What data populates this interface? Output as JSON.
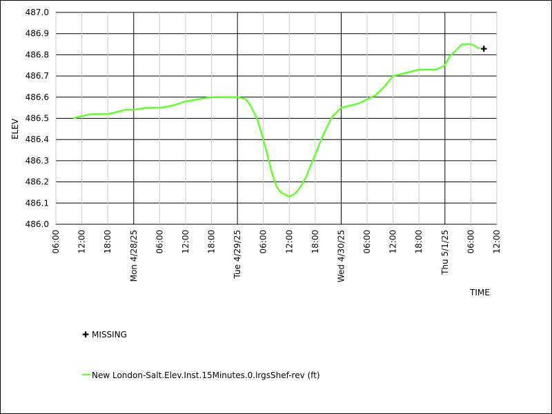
{
  "chart_data": {
    "type": "line",
    "title": "",
    "xlabel": "TIME",
    "ylabel": "ELEV",
    "grid": true,
    "y_ticks": [
      "487.0",
      "486.9",
      "486.8",
      "486.7",
      "486.6",
      "486.5",
      "486.4",
      "486.3",
      "486.2",
      "486.1",
      "486.0"
    ],
    "ylim": [
      486.0,
      487.0
    ],
    "x_range_hours": [
      "2025-04-27 06:00",
      "2025-05-01 12:00"
    ],
    "x_ticks": [
      "06:00",
      "12:00",
      "18:00",
      "Mon 4/28/25",
      "06:00",
      "12:00",
      "18:00",
      "Tue 4/29/25",
      "06:00",
      "12:00",
      "18:00",
      "Wed 4/30/25",
      "06:00",
      "12:00",
      "18:00",
      "Thu 5/1/25",
      "06:00",
      "12:00"
    ],
    "series": [
      {
        "name": "New London-Salt.Elev.Inst.15Minutes.0.lrgsShef-rev (ft)",
        "color": "#66ff33",
        "points": [
          [
            "2025-04-27 10:00",
            486.5
          ],
          [
            "2025-04-27 12:00",
            486.51
          ],
          [
            "2025-04-27 14:00",
            486.52
          ],
          [
            "2025-04-27 16:00",
            486.52
          ],
          [
            "2025-04-27 18:00",
            486.52
          ],
          [
            "2025-04-27 20:00",
            486.53
          ],
          [
            "2025-04-27 22:00",
            486.54
          ],
          [
            "2025-04-28 00:00",
            486.54
          ],
          [
            "2025-04-28 03:00",
            486.55
          ],
          [
            "2025-04-28 06:00",
            486.55
          ],
          [
            "2025-04-28 09:00",
            486.56
          ],
          [
            "2025-04-28 12:00",
            486.58
          ],
          [
            "2025-04-28 15:00",
            486.59
          ],
          [
            "2025-04-28 18:00",
            486.6
          ],
          [
            "2025-04-28 21:00",
            486.6
          ],
          [
            "2025-04-29 00:00",
            486.6
          ],
          [
            "2025-04-29 02:00",
            486.59
          ],
          [
            "2025-04-29 03:00",
            486.56
          ],
          [
            "2025-04-29 04:30",
            486.5
          ],
          [
            "2025-04-29 06:00",
            486.4
          ],
          [
            "2025-04-29 07:00",
            486.32
          ],
          [
            "2025-04-29 08:00",
            486.24
          ],
          [
            "2025-04-29 09:00",
            486.18
          ],
          [
            "2025-04-29 10:00",
            486.15
          ],
          [
            "2025-04-29 11:00",
            486.14
          ],
          [
            "2025-04-29 12:00",
            486.13
          ],
          [
            "2025-04-29 13:00",
            486.14
          ],
          [
            "2025-04-29 14:00",
            486.16
          ],
          [
            "2025-04-29 15:00",
            486.19
          ],
          [
            "2025-04-29 16:00",
            486.23
          ],
          [
            "2025-04-29 17:00",
            486.28
          ],
          [
            "2025-04-29 18:00",
            486.33
          ],
          [
            "2025-04-29 19:00",
            486.38
          ],
          [
            "2025-04-29 20:00",
            486.43
          ],
          [
            "2025-04-29 21:00",
            486.47
          ],
          [
            "2025-04-29 22:00",
            486.51
          ],
          [
            "2025-04-29 23:00",
            486.53
          ],
          [
            "2025-04-30 00:00",
            486.55
          ],
          [
            "2025-04-30 02:00",
            486.56
          ],
          [
            "2025-04-30 04:00",
            486.57
          ],
          [
            "2025-04-30 06:00",
            486.59
          ],
          [
            "2025-04-30 08:00",
            486.61
          ],
          [
            "2025-04-30 10:00",
            486.65
          ],
          [
            "2025-04-30 12:00",
            486.7
          ],
          [
            "2025-04-30 14:00",
            486.71
          ],
          [
            "2025-04-30 16:00",
            486.72
          ],
          [
            "2025-04-30 18:00",
            486.73
          ],
          [
            "2025-04-30 20:00",
            486.73
          ],
          [
            "2025-04-30 22:00",
            486.73
          ],
          [
            "2025-05-01 00:00",
            486.75
          ],
          [
            "2025-05-01 01:00",
            486.79
          ],
          [
            "2025-05-01 02:00",
            486.81
          ],
          [
            "2025-05-01 03:00",
            486.83
          ],
          [
            "2025-05-01 04:00",
            486.85
          ],
          [
            "2025-05-01 05:00",
            486.85
          ],
          [
            "2025-05-01 06:00",
            486.85
          ],
          [
            "2025-05-01 07:00",
            486.84
          ],
          [
            "2025-05-01 08:00",
            486.83
          ]
        ]
      }
    ],
    "missing": {
      "label": "MISSING",
      "points": [
        [
          "2025-05-01 09:00",
          486.83
        ]
      ]
    }
  }
}
